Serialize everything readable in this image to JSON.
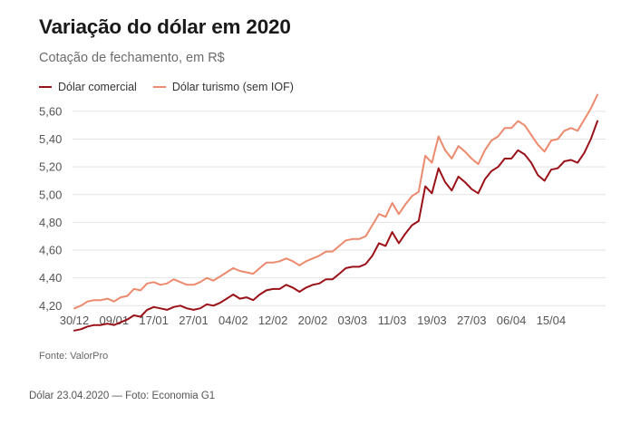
{
  "header": {
    "title": "Variação do dólar em 2020",
    "subtitle": "Cotação de fechamento, em R$"
  },
  "colors": {
    "comercial": "#9b1118",
    "turismo": "#ec8a6e",
    "grid": "#e3e3e3",
    "tick_text": "#555555"
  },
  "chart_data": {
    "type": "line",
    "title": "Variação do dólar em 2020",
    "subtitle": "Cotação de fechamento, em R$",
    "xlabel": "",
    "ylabel": "",
    "ylim": [
      4.13,
      5.73
    ],
    "yticks": [
      "5,60",
      "5,40",
      "5,20",
      "5,00",
      "4,80",
      "4,60",
      "4,40",
      "4,20"
    ],
    "ytick_values": [
      5.6,
      5.4,
      5.2,
      5.0,
      4.8,
      4.6,
      4.4,
      4.2
    ],
    "xticks": [
      "30/12",
      "09/01",
      "17/01",
      "27/01",
      "04/02",
      "12/02",
      "20/02",
      "03/03",
      "11/03",
      "19/03",
      "27/03",
      "06/04",
      "15/04"
    ],
    "xtick_positions": [
      0,
      6,
      12,
      18,
      24,
      30,
      36,
      42,
      48,
      54,
      60,
      66,
      72
    ],
    "grid": true,
    "legend_position": "top-left",
    "series": [
      {
        "name": "Dólar comercial",
        "values": [
          4.02,
          4.03,
          4.05,
          4.06,
          4.06,
          4.07,
          4.06,
          4.08,
          4.1,
          4.13,
          4.12,
          4.17,
          4.19,
          4.18,
          4.17,
          4.19,
          4.2,
          4.18,
          4.17,
          4.18,
          4.21,
          4.2,
          4.22,
          4.25,
          4.28,
          4.25,
          4.26,
          4.24,
          4.28,
          4.31,
          4.32,
          4.32,
          4.35,
          4.33,
          4.3,
          4.33,
          4.35,
          4.36,
          4.39,
          4.39,
          4.43,
          4.47,
          4.48,
          4.48,
          4.5,
          4.56,
          4.65,
          4.63,
          4.73,
          4.65,
          4.72,
          4.78,
          4.81,
          5.06,
          5.01,
          5.19,
          5.09,
          5.03,
          5.13,
          5.09,
          5.04,
          5.01,
          5.11,
          5.17,
          5.2,
          5.26,
          5.26,
          5.32,
          5.29,
          5.23,
          5.14,
          5.1,
          5.18,
          5.19,
          5.24,
          5.25,
          5.23,
          5.3,
          5.4,
          5.53
        ]
      },
      {
        "name": "Dólar turismo (sem IOF)",
        "values": [
          4.18,
          4.2,
          4.23,
          4.24,
          4.24,
          4.25,
          4.23,
          4.26,
          4.27,
          4.32,
          4.31,
          4.36,
          4.37,
          4.35,
          4.36,
          4.39,
          4.37,
          4.35,
          4.35,
          4.37,
          4.4,
          4.38,
          4.41,
          4.44,
          4.47,
          4.45,
          4.44,
          4.43,
          4.47,
          4.51,
          4.51,
          4.52,
          4.54,
          4.52,
          4.49,
          4.52,
          4.54,
          4.56,
          4.59,
          4.59,
          4.63,
          4.67,
          4.68,
          4.68,
          4.7,
          4.78,
          4.86,
          4.84,
          4.94,
          4.86,
          4.93,
          4.99,
          5.02,
          5.28,
          5.23,
          5.42,
          5.32,
          5.26,
          5.35,
          5.31,
          5.26,
          5.22,
          5.32,
          5.39,
          5.42,
          5.48,
          5.48,
          5.53,
          5.5,
          5.43,
          5.36,
          5.31,
          5.39,
          5.4,
          5.46,
          5.48,
          5.46,
          5.54,
          5.62,
          5.72
        ]
      }
    ]
  },
  "footer": {
    "source": "Fonte: ValorPro",
    "caption": "Dólar 23.04.2020 — Foto: Economia G1"
  }
}
